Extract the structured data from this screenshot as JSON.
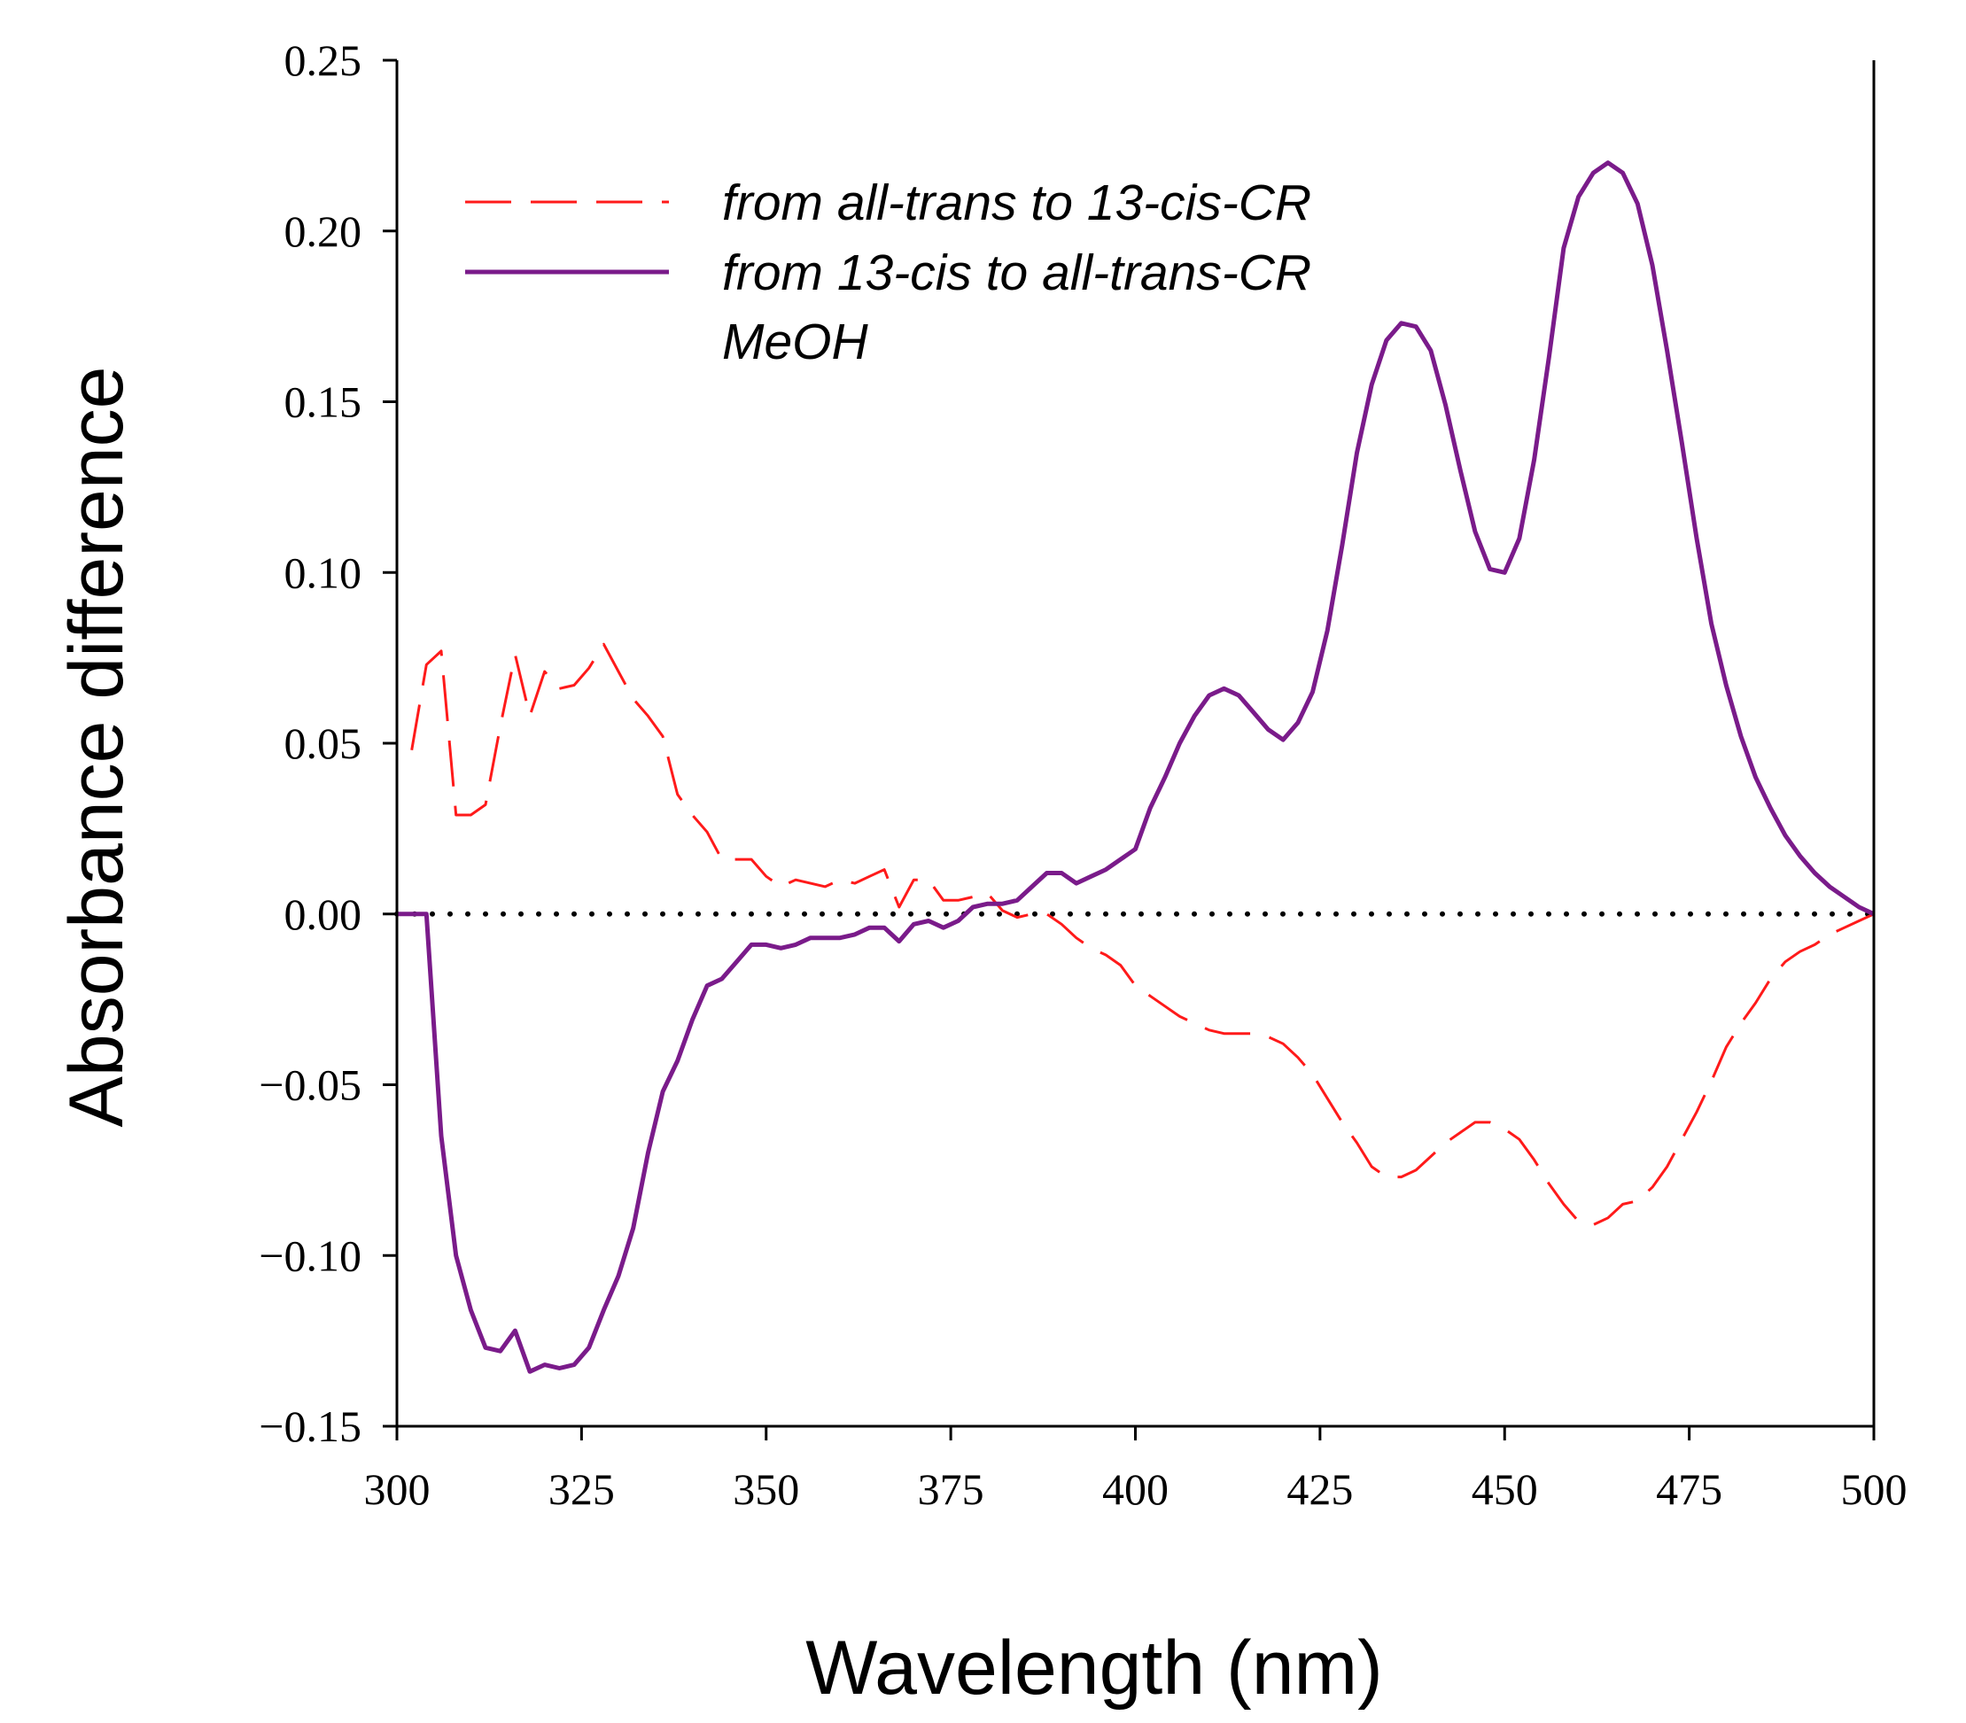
{
  "chart_data": {
    "type": "line",
    "xlabel": "Wavelength (nm)",
    "ylabel": "Absorbance difference",
    "xlim": [
      300,
      500
    ],
    "ylim": [
      -0.15,
      0.25
    ],
    "xticks": [
      300,
      325,
      350,
      375,
      400,
      425,
      450,
      475,
      500
    ],
    "xtick_labels": [
      "300",
      "325",
      "350",
      "375",
      "400",
      "425",
      "450",
      "475",
      "500"
    ],
    "yticks": [
      -0.15,
      -0.1,
      -0.05,
      0.0,
      0.05,
      0.1,
      0.15,
      0.2,
      0.25
    ],
    "ytick_labels": [
      "−0.15",
      "−0.10",
      "−0.05",
      "0.00",
      "0.05",
      "0.10",
      "0.15",
      "0.20",
      "0.25"
    ],
    "grid": false,
    "legend_position": "top-left",
    "legend_note": "MeOH",
    "reference_line": {
      "y": 0,
      "style": "dotted",
      "color": "#000000"
    },
    "series": [
      {
        "name": "from all-trans to 13-cis-CR",
        "color": "#ff1a1a",
        "style": "dashed",
        "x": [
          302,
          304,
          306,
          308,
          310,
          312,
          314,
          316,
          318,
          320,
          322,
          324,
          326,
          328,
          330,
          332,
          334,
          336,
          338,
          340,
          342,
          344,
          346,
          348,
          350,
          352,
          354,
          356,
          358,
          360,
          362,
          364,
          366,
          368,
          370,
          372,
          374,
          376,
          378,
          380,
          382,
          384,
          386,
          388,
          390,
          392,
          394,
          396,
          398,
          400,
          402,
          404,
          406,
          408,
          410,
          412,
          414,
          416,
          418,
          420,
          422,
          424,
          426,
          428,
          430,
          432,
          434,
          436,
          438,
          440,
          442,
          444,
          446,
          448,
          450,
          452,
          454,
          456,
          458,
          460,
          462,
          464,
          466,
          468,
          470,
          472,
          474,
          476,
          478,
          480,
          482,
          484,
          486,
          488,
          490,
          492,
          494,
          496,
          498,
          500
        ],
        "y": [
          0.048,
          0.073,
          0.077,
          0.029,
          0.029,
          0.032,
          0.055,
          0.076,
          0.058,
          0.071,
          0.066,
          0.067,
          0.072,
          0.079,
          0.071,
          0.063,
          0.058,
          0.052,
          0.035,
          0.029,
          0.024,
          0.016,
          0.016,
          0.016,
          0.011,
          0.008,
          0.01,
          0.009,
          0.008,
          0.01,
          0.009,
          0.011,
          0.013,
          0.002,
          0.01,
          0.01,
          0.004,
          0.004,
          0.005,
          0.006,
          0.001,
          -0.001,
          0.0,
          0.0,
          -0.003,
          -0.007,
          -0.01,
          -0.012,
          -0.015,
          -0.021,
          -0.024,
          -0.027,
          -0.03,
          -0.032,
          -0.034,
          -0.035,
          -0.035,
          -0.035,
          -0.036,
          -0.038,
          -0.042,
          -0.047,
          -0.054,
          -0.061,
          -0.067,
          -0.074,
          -0.077,
          -0.077,
          -0.075,
          -0.071,
          -0.067,
          -0.064,
          -0.061,
          -0.061,
          -0.063,
          -0.066,
          -0.072,
          -0.079,
          -0.085,
          -0.09,
          -0.091,
          -0.089,
          -0.085,
          -0.084,
          -0.08,
          -0.074,
          -0.066,
          -0.058,
          -0.049,
          -0.039,
          -0.032,
          -0.026,
          -0.019,
          -0.014,
          -0.011,
          -0.009,
          -0.006,
          -0.004,
          -0.002,
          -0.0
        ]
      },
      {
        "name": "from 13-cis to all-trans-CR",
        "color": "#7a1b8a",
        "style": "solid",
        "x": [
          300,
          302,
          304,
          306,
          308,
          310,
          312,
          314,
          316,
          318,
          320,
          322,
          324,
          326,
          328,
          330,
          332,
          334,
          336,
          338,
          340,
          342,
          344,
          346,
          348,
          350,
          352,
          354,
          356,
          358,
          360,
          362,
          364,
          366,
          368,
          370,
          372,
          374,
          376,
          378,
          380,
          382,
          384,
          386,
          388,
          390,
          392,
          394,
          396,
          398,
          400,
          402,
          404,
          406,
          408,
          410,
          412,
          414,
          416,
          418,
          420,
          422,
          424,
          426,
          428,
          430,
          432,
          434,
          436,
          438,
          440,
          442,
          444,
          446,
          448,
          450,
          452,
          454,
          456,
          458,
          460,
          462,
          464,
          466,
          468,
          470,
          472,
          474,
          476,
          478,
          480,
          482,
          484,
          486,
          488,
          490,
          492,
          494,
          496,
          498,
          500
        ],
        "y": [
          0.0,
          0.0,
          0.0,
          -0.065,
          -0.1,
          -0.116,
          -0.127,
          -0.128,
          -0.122,
          -0.134,
          -0.132,
          -0.133,
          -0.132,
          -0.127,
          -0.116,
          -0.106,
          -0.092,
          -0.07,
          -0.052,
          -0.043,
          -0.031,
          -0.021,
          -0.019,
          -0.014,
          -0.009,
          -0.009,
          -0.01,
          -0.009,
          -0.007,
          -0.007,
          -0.007,
          -0.006,
          -0.004,
          -0.004,
          -0.008,
          -0.003,
          -0.002,
          -0.004,
          -0.002,
          0.002,
          0.003,
          0.003,
          0.004,
          0.008,
          0.012,
          0.012,
          0.009,
          0.011,
          0.013,
          0.016,
          0.019,
          0.031,
          0.04,
          0.05,
          0.058,
          0.064,
          0.066,
          0.064,
          0.059,
          0.054,
          0.051,
          0.056,
          0.065,
          0.083,
          0.108,
          0.135,
          0.155,
          0.168,
          0.173,
          0.172,
          0.165,
          0.149,
          0.13,
          0.112,
          0.101,
          0.1,
          0.11,
          0.133,
          0.163,
          0.195,
          0.21,
          0.217,
          0.22,
          0.217,
          0.208,
          0.19,
          0.165,
          0.138,
          0.11,
          0.085,
          0.067,
          0.052,
          0.04,
          0.031,
          0.023,
          0.017,
          0.012,
          0.008,
          0.005,
          0.002,
          0.0
        ]
      }
    ]
  }
}
